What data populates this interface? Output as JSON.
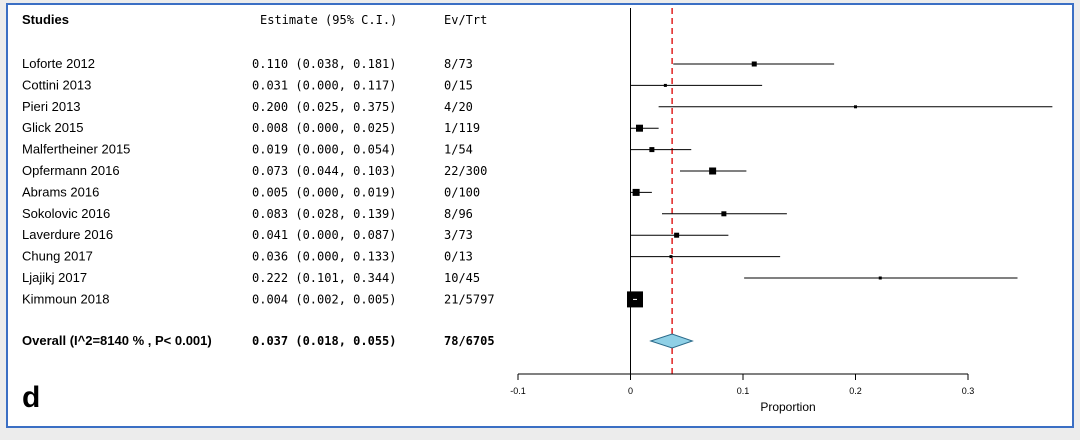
{
  "panel_label": "d",
  "header": {
    "studies": "Studies",
    "estimate": "Estimate (95% C.I.)",
    "evtrt": "Ev/Trt"
  },
  "studies": [
    {
      "name": "Loforte 2012",
      "est": 0.11,
      "lo": 0.038,
      "hi": 0.181,
      "evtrt": "8/73",
      "ci_text": "0.110 (0.038, 0.181)"
    },
    {
      "name": "Cottini 2013",
      "est": 0.031,
      "lo": 0.0,
      "hi": 0.117,
      "evtrt": "0/15",
      "ci_text": "0.031 (0.000, 0.117)"
    },
    {
      "name": "Pieri 2013",
      "est": 0.2,
      "lo": 0.025,
      "hi": 0.375,
      "evtrt": "4/20",
      "ci_text": "0.200 (0.025, 0.375)"
    },
    {
      "name": "Glick 2015",
      "est": 0.008,
      "lo": 0.0,
      "hi": 0.025,
      "evtrt": "1/119",
      "ci_text": "0.008 (0.000, 0.025)"
    },
    {
      "name": "Malfertheiner 2015",
      "est": 0.019,
      "lo": 0.0,
      "hi": 0.054,
      "evtrt": "1/54",
      "ci_text": "0.019 (0.000, 0.054)"
    },
    {
      "name": "Opfermann 2016",
      "est": 0.073,
      "lo": 0.044,
      "hi": 0.103,
      "evtrt": "22/300",
      "ci_text": "0.073 (0.044, 0.103)"
    },
    {
      "name": "Abrams 2016",
      "est": 0.005,
      "lo": 0.0,
      "hi": 0.019,
      "evtrt": "0/100",
      "ci_text": "0.005 (0.000, 0.019)"
    },
    {
      "name": "Sokolovic 2016",
      "est": 0.083,
      "lo": 0.028,
      "hi": 0.139,
      "evtrt": "8/96",
      "ci_text": "0.083 (0.028, 0.139)"
    },
    {
      "name": "Laverdure 2016",
      "est": 0.041,
      "lo": 0.0,
      "hi": 0.087,
      "evtrt": "3/73",
      "ci_text": "0.041 (0.000, 0.087)"
    },
    {
      "name": "Chung 2017",
      "est": 0.036,
      "lo": 0.0,
      "hi": 0.133,
      "evtrt": "0/13",
      "ci_text": "0.036 (0.000, 0.133)"
    },
    {
      "name": "Ljajikj 2017",
      "est": 0.222,
      "lo": 0.101,
      "hi": 0.344,
      "evtrt": "10/45",
      "ci_text": "0.222 (0.101, 0.344)"
    },
    {
      "name": "Kimmoun 2018",
      "est": 0.004,
      "lo": 0.002,
      "hi": 0.005,
      "evtrt": "21/5797",
      "ci_text": "0.004 (0.002, 0.005)"
    }
  ],
  "overall": {
    "label": "Overall (I^2=8140 % , P< 0.001)",
    "est": 0.037,
    "lo": 0.018,
    "hi": 0.055,
    "ci_text": "0.037 (0.018, 0.055)",
    "evtrt": "78/6705"
  },
  "chart_data": {
    "type": "forest",
    "xlabel": "Proportion",
    "xlim": [
      -0.1,
      0.3
    ],
    "xticks": [
      -0.1,
      0,
      0.1,
      0.2,
      0.3
    ],
    "xtick_labels": [
      "-0.1",
      "0",
      "0.1",
      "0.2",
      "0.3"
    ],
    "reference_line": 0,
    "pooled_line": 0.037,
    "pooled_line_color": "#e02020",
    "diamond_color": "#8fd0e6"
  }
}
